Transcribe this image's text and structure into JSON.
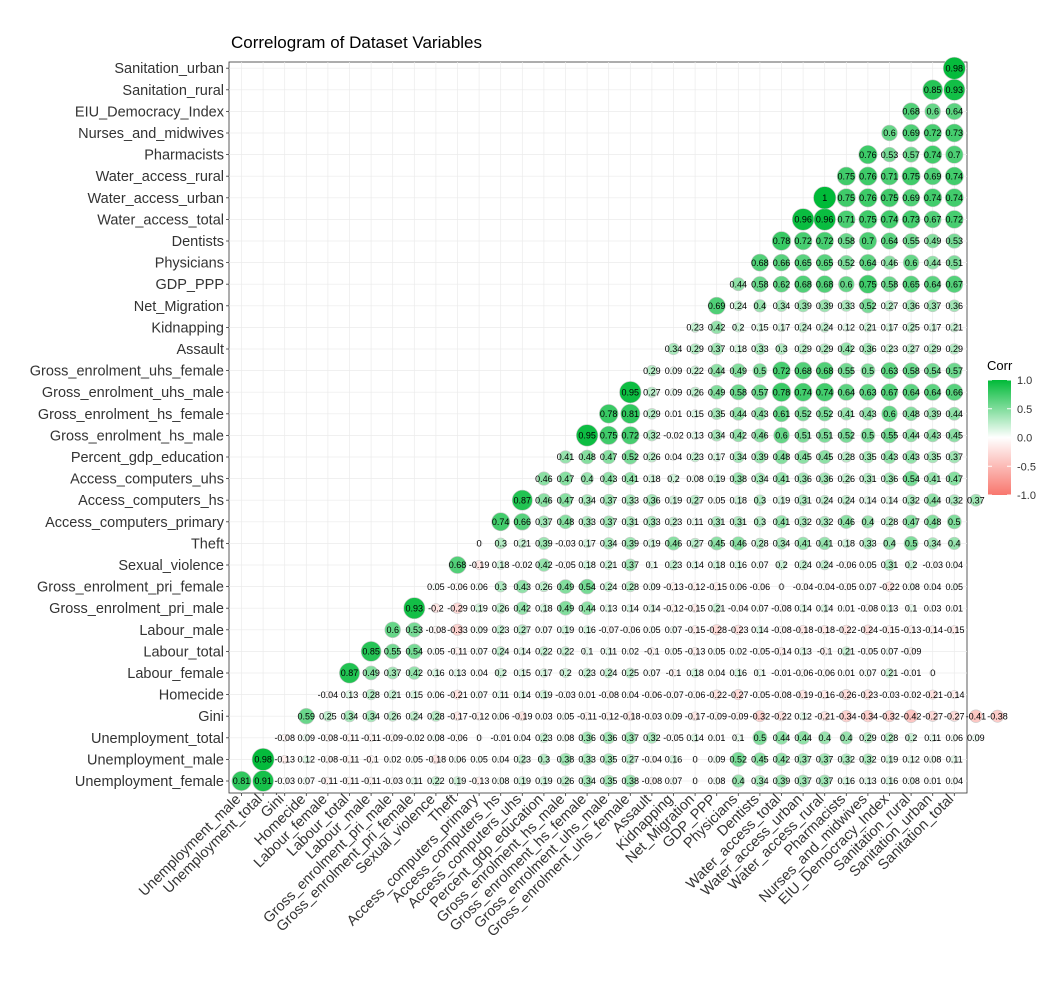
{
  "chart_data": {
    "type": "heatmap",
    "title": "Correlogram of Dataset Variables",
    "variables": [
      "Unemployment_female",
      "Unemployment_male",
      "Unemployment_total",
      "Gini",
      "Homecide",
      "Labour_female",
      "Labour_total",
      "Labour_male",
      "Gross_enrolment_pri_male",
      "Gross_enrolment_pri_female",
      "Sexual_violence",
      "Theft",
      "Access_computers_primary",
      "Access_computers_hs",
      "Access_computers_uhs",
      "Percent_gdp_education",
      "Gross_enrolment_hs_male",
      "Gross_enrolment_hs_female",
      "Gross_enrolment_uhs_male",
      "Gross_enrolment_uhs_female",
      "Assault",
      "Kidnapping",
      "Net_Migration",
      "GDP_PPP",
      "Physicians",
      "Dentists",
      "Water_access_total",
      "Water_access_urban",
      "Water_access_rural",
      "Pharmacists",
      "Nurses_and_midwives",
      "EIU_Democracy_Index",
      "Sanitation_rural",
      "Sanitation_urban",
      "Sanitation_total"
    ],
    "x_tick_labels": [
      "Unemployment_male",
      "Unemployment_total",
      "Gini",
      "Homecide",
      "Labour_female",
      "Labour_total",
      "Labour_male",
      "Gross_enrolment_pri_male",
      "Gross_enrolment_pri_female",
      "Sexual_violence",
      "Theft",
      "Access_computers_primary",
      "Access_computers_hs",
      "Access_computers_uhs",
      "Percent_gdp_education",
      "Gross_enrolment_hs_male",
      "Gross_enrolment_hs_female",
      "Gross_enrolment_uhs_male",
      "Gross_enrolment_uhs_female",
      "Assault",
      "Kidnapping",
      "Net_Migration",
      "GDP_PPP",
      "Physicians",
      "Dentists",
      "Water_access_total",
      "Water_access_urban",
      "Water_access_rural",
      "Pharmacists",
      "Nurses_and_midwives",
      "EIU_Democracy_Index",
      "Sanitation_rural",
      "Sanitation_urban",
      "Sanitation_total"
    ],
    "y_tick_labels": [
      "Unemployment_female",
      "Unemployment_male",
      "Unemployment_total",
      "Gini",
      "Homecide",
      "Labour_female",
      "Labour_total",
      "Labour_male",
      "Gross_enrolment_pri_male",
      "Gross_enrolment_pri_female",
      "Sexual_violence",
      "Theft",
      "Access_computers_primary",
      "Access_computers_hs",
      "Access_computers_uhs",
      "Percent_gdp_education",
      "Gross_enrolment_hs_male",
      "Gross_enrolment_hs_female",
      "Gross_enrolment_uhs_male",
      "Gross_enrolment_uhs_female",
      "Assault",
      "Kidnapping",
      "Net_Migration",
      "GDP_PPP",
      "Physicians",
      "Dentists",
      "Water_access_total",
      "Water_access_urban",
      "Water_access_rural",
      "Pharmacists",
      "Nurses_and_midwives",
      "EIU_Democracy_Index",
      "Sanitation_rural",
      "Sanitation_urban"
    ],
    "rows": [
      [
        0.81,
        0.91,
        -0.03,
        0.07,
        -0.11,
        -0.11,
        -0.11,
        -0.03,
        0.11,
        0.22,
        0.19,
        -0.13,
        0.08,
        0.19,
        0.19,
        0.26,
        0.34,
        0.35,
        0.38,
        -0.08,
        0.07,
        0,
        0.08,
        0.4,
        0.34,
        0.39,
        0.37,
        0.37,
        0.16,
        0.13,
        0.16,
        0.08,
        0.01,
        0.04
      ],
      [
        0.98,
        -0.13,
        0.12,
        -0.08,
        -0.11,
        -0.1,
        0.02,
        0.05,
        -0.18,
        0.06,
        0.05,
        0.04,
        0.23,
        0.3,
        0.38,
        0.33,
        0.35,
        0.27,
        -0.04,
        0.16,
        0,
        0.09,
        0.52,
        0.45,
        0.42,
        0.37,
        0.37,
        0.32,
        0.32,
        0.19,
        0.12,
        0.08,
        0.11
      ],
      [
        -0.08,
        0.09,
        -0.08,
        -0.11,
        -0.11,
        -0.09,
        -0.02,
        0.08,
        -0.06,
        0,
        -0.01,
        0.04,
        0.23,
        0.08,
        0.36,
        0.36,
        0.37,
        0.32,
        -0.05,
        0.14,
        0.01,
        0.1,
        0.5,
        0.44,
        0.44,
        0.4,
        0.4,
        0.29,
        0.28,
        0.2,
        0.11,
        0.06,
        0.09
      ],
      [
        0.59,
        0.25,
        0.34,
        0.34,
        0.26,
        0.24,
        0.28,
        -0.17,
        -0.12,
        0.06,
        -0.19,
        0.03,
        0.05,
        -0.11,
        -0.12,
        -0.18,
        -0.03,
        0.09,
        -0.17,
        -0.09,
        -0.09,
        -0.32,
        -0.22,
        0.12,
        -0.21,
        -0.34,
        -0.34,
        -0.32,
        -0.42,
        -0.27,
        -0.27,
        -0.41,
        -0.38
      ],
      [
        -0.04,
        0.13,
        0.28,
        0.21,
        0.15,
        0.06,
        -0.21,
        0.07,
        0.11,
        0.14,
        0.19,
        -0.03,
        0.01,
        -0.08,
        0.04,
        -0.06,
        -0.07,
        -0.06,
        -0.22,
        -0.27,
        -0.05,
        -0.08,
        -0.19,
        -0.16,
        -0.26,
        -0.23,
        -0.03,
        -0.02,
        -0.21,
        -0.14
      ],
      [
        0.87,
        0.49,
        0.37,
        0.42,
        0.16,
        0.13,
        0.04,
        0.2,
        0.15,
        0.17,
        0.2,
        0.23,
        0.24,
        0.25,
        0.07,
        -0.1,
        0.18,
        0.04,
        0.16,
        0.1,
        -0.01,
        -0.06,
        -0.06,
        0.01,
        0.07,
        0.21,
        -0.01,
        0
      ],
      [
        0.85,
        0.55,
        0.54,
        0.05,
        -0.11,
        0.07,
        0.24,
        0.14,
        0.22,
        0.22,
        0.1,
        0.11,
        0.02,
        -0.1,
        0.05,
        -0.13,
        0.05,
        0.02,
        -0.05,
        -0.14,
        0.13,
        -0.1,
        0.21,
        -0.05,
        0.07,
        -0.09
      ],
      [
        0.6,
        0.53,
        -0.08,
        -0.33,
        0.09,
        0.23,
        0.27,
        0.07,
        0.19,
        0.16,
        -0.07,
        -0.06,
        0.05,
        0.07,
        -0.15,
        -0.28,
        -0.23,
        0.14,
        -0.08,
        -0.18,
        -0.18,
        -0.22,
        -0.24,
        -0.15,
        -0.13,
        -0.14,
        -0.15
      ],
      [
        0.93,
        -0.2,
        -0.29,
        0.19,
        0.26,
        0.42,
        0.18,
        0.49,
        0.44,
        0.13,
        0.14,
        0.14,
        -0.12,
        -0.15,
        0.21,
        -0.04,
        0.07,
        -0.08,
        0.14,
        0.14,
        0.01,
        -0.08,
        0.13,
        0.1,
        0.03,
        0.01
      ],
      [
        0.05,
        -0.06,
        0.06,
        0.3,
        0.43,
        0.26,
        0.49,
        0.54,
        0.24,
        0.28,
        0.09,
        -0.13,
        -0.12,
        -0.15,
        0.06,
        -0.06,
        0,
        -0.04,
        -0.04,
        -0.05,
        0.07,
        -0.22,
        0.08,
        0.04,
        0.05
      ],
      [
        0.68,
        -0.19,
        0.18,
        -0.02,
        0.42,
        -0.05,
        0.18,
        0.21,
        0.37,
        0.1,
        0.23,
        0.14,
        0.18,
        0.16,
        0.07,
        0.2,
        0.24,
        0.24,
        -0.06,
        0.05,
        0.31,
        0.2,
        -0.03,
        0.04
      ],
      [
        0,
        0.3,
        0.21,
        0.39,
        -0.03,
        0.17,
        0.34,
        0.39,
        0.19,
        0.46,
        0.27,
        0.45,
        0.46,
        0.28,
        0.34,
        0.41,
        0.41,
        0.18,
        0.33,
        0.4,
        0.5,
        0.34,
        0.4
      ],
      [
        0.74,
        0.66,
        0.37,
        0.48,
        0.33,
        0.37,
        0.31,
        0.33,
        0.23,
        0.11,
        0.31,
        0.31,
        0.3,
        0.41,
        0.32,
        0.32,
        0.46,
        0.4,
        0.28,
        0.47,
        0.48,
        0.5
      ],
      [
        0.87,
        0.46,
        0.47,
        0.34,
        0.37,
        0.33,
        0.36,
        0.19,
        0.27,
        0.05,
        0.18,
        0.3,
        0.19,
        0.31,
        0.24,
        0.24,
        0.14,
        0.14,
        0.32,
        0.44,
        0.32,
        0.37
      ],
      [
        0.46,
        0.47,
        0.4,
        0.43,
        0.41,
        0.18,
        0.2,
        0.08,
        0.19,
        0.38,
        0.34,
        0.41,
        0.36,
        0.36,
        0.26,
        0.31,
        0.36,
        0.54,
        0.41,
        0.47
      ],
      [
        0.41,
        0.48,
        0.47,
        0.52,
        0.26,
        0.04,
        0.23,
        0.17,
        0.34,
        0.39,
        0.48,
        0.45,
        0.45,
        0.28,
        0.35,
        0.43,
        0.43,
        0.35,
        0.37
      ],
      [
        0.95,
        0.75,
        0.72,
        0.32,
        -0.02,
        0.13,
        0.34,
        0.42,
        0.46,
        0.6,
        0.51,
        0.51,
        0.52,
        0.5,
        0.55,
        0.44,
        0.43,
        0.45
      ],
      [
        0.78,
        0.81,
        0.29,
        0.01,
        0.15,
        0.35,
        0.44,
        0.43,
        0.61,
        0.52,
        0.52,
        0.41,
        0.43,
        0.6,
        0.48,
        0.39,
        0.44
      ],
      [
        0.95,
        0.27,
        0.09,
        0.26,
        0.49,
        0.58,
        0.57,
        0.78,
        0.74,
        0.74,
        0.64,
        0.63,
        0.67,
        0.64,
        0.64,
        0.66
      ],
      [
        0.29,
        0.09,
        0.22,
        0.44,
        0.49,
        0.5,
        0.72,
        0.68,
        0.68,
        0.55,
        0.5,
        0.63,
        0.58,
        0.54,
        0.57
      ],
      [
        0.34,
        0.29,
        0.37,
        0.18,
        0.33,
        0.3,
        0.29,
        0.29,
        0.42,
        0.36,
        0.23,
        0.27,
        0.29,
        0.29
      ],
      [
        0.23,
        0.42,
        0.2,
        0.15,
        0.17,
        0.24,
        0.24,
        0.12,
        0.21,
        0.17,
        0.25,
        0.17,
        0.21
      ],
      [
        0.69,
        0.24,
        0.4,
        0.34,
        0.39,
        0.39,
        0.33,
        0.52,
        0.27,
        0.36,
        0.37,
        0.36
      ],
      [
        0.44,
        0.58,
        0.62,
        0.68,
        0.68,
        0.6,
        0.75,
        0.58,
        0.65,
        0.64,
        0.67
      ],
      [
        0.68,
        0.66,
        0.65,
        0.65,
        0.52,
        0.64,
        0.46,
        0.6,
        0.44,
        0.51
      ],
      [
        0.78,
        0.72,
        0.72,
        0.58,
        0.7,
        0.64,
        0.55,
        0.49,
        0.53
      ],
      [
        0.96,
        0.96,
        0.71,
        0.75,
        0.74,
        0.73,
        0.67,
        0.72
      ],
      [
        1,
        0.75,
        0.76,
        0.75,
        0.69,
        0.74,
        0.74
      ],
      [
        0.75,
        0.76,
        0.71,
        0.75,
        0.69,
        0.74
      ],
      [
        0.76,
        0.53,
        0.57,
        0.74,
        0.7
      ],
      [
        0.6,
        0.69,
        0.72,
        0.73
      ],
      [
        0.68,
        0.6,
        0.64
      ],
      [
        0.85,
        0.93
      ],
      [
        0.98
      ]
    ],
    "legend": {
      "title": "Corr",
      "ticks": [
        "1.0",
        "0.5",
        "0.0",
        "-0.5",
        "-1.0"
      ],
      "tick_values": [
        1.0,
        0.5,
        0.0,
        -0.5,
        -1.0
      ],
      "position": "right",
      "colors": {
        "low": "#F8766D",
        "mid": "#FFFFFF",
        "high": "#00BA38"
      }
    },
    "grid": true,
    "layout": "lower-triangle circles with coefficient labels"
  }
}
